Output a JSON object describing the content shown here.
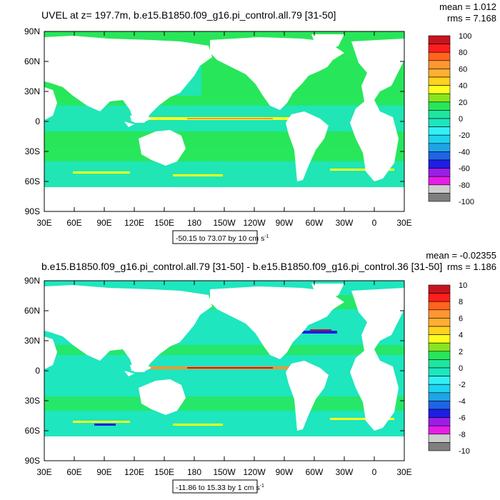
{
  "palette": [
    "#7f7f7f",
    "#cdcdcd",
    "#e61ee6",
    "#9b1ee6",
    "#1e1ee6",
    "#1e64e6",
    "#1ea5e6",
    "#1ed2f0",
    "#32f0f5",
    "#1ee6be",
    "#1ee6a0",
    "#28e65a",
    "#87e61e",
    "#ffff1e",
    "#ffd21e",
    "#ffaf32",
    "#ff9632",
    "#ff641e",
    "#ff1e1e",
    "#c8141e"
  ],
  "land_color": "#ffffff",
  "axes": {
    "lat_labels": [
      "90N",
      "60N",
      "30N",
      "0",
      "30S",
      "60S",
      "90S"
    ],
    "lon_labels": [
      "30E",
      "60E",
      "90E",
      "120E",
      "150E",
      "180",
      "150W",
      "120W",
      "90W",
      "60W",
      "30W",
      "0",
      "30E"
    ]
  },
  "panels": [
    {
      "title": "UVEL at z= 197.7m, b.e15.B1850.f09_g16.pi_control.all.79 [31-50]",
      "stat_mean": "mean = 1.012",
      "stat_rms": "rms = 7.168",
      "range_label": "-50.15 to 73.07 by 10 cm s",
      "range_exp": "-1",
      "colorbar_labels": [
        "100",
        "80",
        "60",
        "40",
        "20",
        "0",
        "-20",
        "-40",
        "-60",
        "-80",
        "-100"
      ],
      "background_index": 11
    },
    {
      "title": "b.e15.B1850.f09_g16.pi_control.all.79 [31-50] - b.e15.B1850.f09_g16.pi_control.36 [31-50]",
      "stat_mean": "mean = -0.02355",
      "stat_rms": "rms = 1.186",
      "range_label": "-11.86 to 15.33 by 1 cm s",
      "range_exp": "-1",
      "colorbar_labels": [
        "10",
        "8",
        "6",
        "4",
        "2",
        "0",
        "-2",
        "-4",
        "-6",
        "-8",
        "-10"
      ],
      "background_index": 9
    }
  ]
}
